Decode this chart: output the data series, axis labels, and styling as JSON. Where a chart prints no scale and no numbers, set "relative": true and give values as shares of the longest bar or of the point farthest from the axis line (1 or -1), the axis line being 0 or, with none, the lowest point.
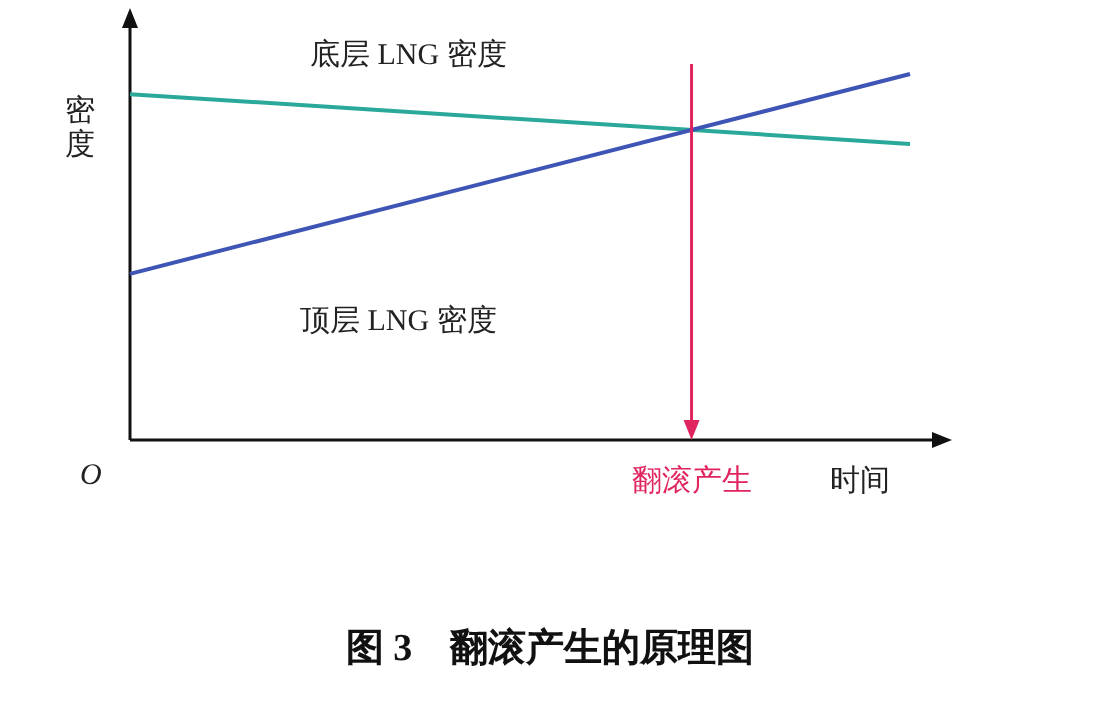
{
  "chart_data": {
    "type": "line",
    "relative": true,
    "xlabel": "时间",
    "ylabel": "密度",
    "categories": [
      null,
      null
    ],
    "series": [
      {
        "name": "底层 LNG 密度",
        "color": "#2aa89a",
        "values": [
          0.945,
          0.809
        ]
      },
      {
        "name": "顶层 LNG 密度",
        "color": "#3f55b5",
        "values": [
          0.454,
          1.0
        ]
      }
    ],
    "annotations": [
      "O",
      "翻滚产生",
      "图 3　翻滚产生的原理图"
    ],
    "marker": "none",
    "line_style": "solid"
  }
}
